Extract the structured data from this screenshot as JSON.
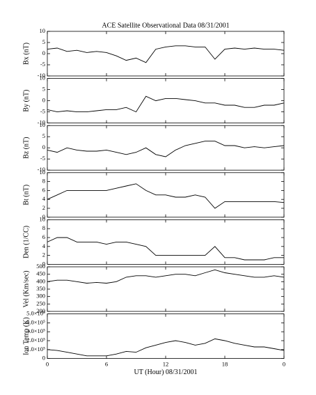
{
  "chart_data": [
    {
      "type": "line",
      "title": "ACE Satellite Observational Data  08/31/2001",
      "ylabel": "Bx (nT)",
      "x": [
        0,
        1,
        2,
        3,
        4,
        5,
        6,
        7,
        8,
        9,
        10,
        11,
        12,
        13,
        14,
        15,
        16,
        17,
        18,
        19,
        20,
        21,
        22,
        23,
        24
      ],
      "series": [
        {
          "color": "#000000",
          "values": [
            2,
            2.5,
            1,
            1.5,
            0.5,
            1,
            0.5,
            -1,
            -3,
            -2,
            -4,
            2,
            3,
            3.5,
            3.5,
            3,
            3,
            -2.5,
            2,
            2.5,
            2,
            2.5,
            2,
            2,
            1.5
          ]
        }
      ],
      "xlim": [
        0,
        24
      ],
      "xticks": [
        0,
        6,
        12,
        18,
        24
      ],
      "ylim": [
        -10,
        10
      ],
      "yticks": [
        -10,
        -5,
        0,
        5,
        10
      ]
    },
    {
      "type": "line",
      "ylabel": "By (nT)",
      "x": [
        0,
        1,
        2,
        3,
        4,
        5,
        6,
        7,
        8,
        9,
        10,
        11,
        12,
        13,
        14,
        15,
        16,
        17,
        18,
        19,
        20,
        21,
        22,
        23,
        24
      ],
      "series": [
        {
          "color": "#000000",
          "values": [
            -4,
            -5,
            -4.5,
            -5,
            -5,
            -4.5,
            -4,
            -4,
            -3,
            -5,
            2,
            0,
            1,
            1,
            0.5,
            0,
            -1,
            -1,
            -2,
            -2,
            -3,
            -3,
            -2,
            -2,
            -1
          ]
        }
      ],
      "xlim": [
        0,
        24
      ],
      "xticks": [
        0,
        6,
        12,
        18,
        24
      ],
      "ylim": [
        -10,
        10
      ],
      "yticks": [
        -10,
        -5,
        0,
        5,
        10
      ]
    },
    {
      "type": "line",
      "ylabel": "Bz (nT)",
      "x": [
        0,
        1,
        2,
        3,
        4,
        5,
        6,
        7,
        8,
        9,
        10,
        11,
        12,
        13,
        14,
        15,
        16,
        17,
        18,
        19,
        20,
        21,
        22,
        23,
        24
      ],
      "series": [
        {
          "color": "#000000",
          "values": [
            -1,
            -2,
            0,
            -1,
            -1.5,
            -1.5,
            -1,
            -2,
            -3,
            -2,
            0,
            -3,
            -4,
            -1,
            1,
            2,
            3,
            3,
            1,
            1,
            0,
            0.5,
            0,
            0.5,
            1
          ]
        }
      ],
      "xlim": [
        0,
        24
      ],
      "xticks": [
        0,
        6,
        12,
        18,
        24
      ],
      "ylim": [
        -10,
        10
      ],
      "yticks": [
        -10,
        -5,
        0,
        5,
        10
      ]
    },
    {
      "type": "line",
      "ylabel": "Bt (nT)",
      "x": [
        0,
        1,
        2,
        3,
        4,
        5,
        6,
        7,
        8,
        9,
        10,
        11,
        12,
        13,
        14,
        15,
        16,
        17,
        18,
        19,
        20,
        21,
        22,
        23,
        24
      ],
      "series": [
        {
          "color": "#000000",
          "values": [
            4,
            5,
            6,
            6,
            6,
            6,
            6,
            6.5,
            7,
            7.5,
            6,
            5,
            5,
            4.5,
            4.5,
            5,
            4.5,
            2,
            3.5,
            3.5,
            3.5,
            3.5,
            3.5,
            3.5,
            3.3
          ]
        }
      ],
      "xlim": [
        0,
        24
      ],
      "xticks": [
        0,
        6,
        12,
        18,
        24
      ],
      "ylim": [
        0,
        10
      ],
      "yticks": [
        0,
        2,
        4,
        6,
        8,
        10
      ]
    },
    {
      "type": "line",
      "ylabel": "Den (1/CC)",
      "x": [
        0,
        1,
        2,
        3,
        4,
        5,
        6,
        7,
        8,
        9,
        10,
        11,
        12,
        13,
        14,
        15,
        16,
        17,
        18,
        19,
        20,
        21,
        22,
        23,
        24
      ],
      "series": [
        {
          "color": "#000000",
          "values": [
            5,
            6,
            6,
            5,
            5,
            5,
            4.5,
            5,
            5,
            4.5,
            4,
            2,
            2,
            2,
            2,
            2,
            2,
            4,
            1.5,
            1.5,
            1,
            1,
            1,
            1.5,
            1.5
          ]
        }
      ],
      "xlim": [
        0,
        24
      ],
      "xticks": [
        0,
        6,
        12,
        18,
        24
      ],
      "ylim": [
        0,
        10
      ],
      "yticks": [
        0,
        2,
        4,
        6,
        8,
        10
      ]
    },
    {
      "type": "line",
      "ylabel": "Vel (Km/sec)",
      "x": [
        0,
        1,
        2,
        3,
        4,
        5,
        6,
        7,
        8,
        9,
        10,
        11,
        12,
        13,
        14,
        15,
        16,
        17,
        18,
        19,
        20,
        21,
        22,
        23,
        24
      ],
      "series": [
        {
          "color": "#000000",
          "values": [
            400,
            410,
            410,
            400,
            390,
            395,
            390,
            400,
            430,
            440,
            440,
            430,
            440,
            450,
            450,
            440,
            460,
            480,
            460,
            450,
            440,
            430,
            430,
            440,
            430
          ]
        }
      ],
      "xlim": [
        0,
        24
      ],
      "xticks": [
        0,
        6,
        12,
        18,
        24
      ],
      "ylim": [
        200,
        500
      ],
      "yticks": [
        200,
        250,
        300,
        350,
        400,
        450,
        500
      ]
    },
    {
      "type": "line",
      "ylabel": "Ion Temp (K)",
      "xlabel": "UT (Hour)  08/31/2001",
      "x": [
        0,
        1,
        2,
        3,
        4,
        5,
        6,
        7,
        8,
        9,
        10,
        11,
        12,
        13,
        14,
        15,
        16,
        17,
        18,
        19,
        20,
        21,
        22,
        23,
        24
      ],
      "series": [
        {
          "color": "#000000",
          "values": [
            100000,
            90000,
            70000,
            50000,
            30000,
            30000,
            30000,
            50000,
            80000,
            70000,
            120000,
            150000,
            180000,
            200000,
            180000,
            150000,
            170000,
            220000,
            200000,
            170000,
            150000,
            130000,
            130000,
            110000,
            90000
          ]
        }
      ],
      "xlim": [
        0,
        24
      ],
      "xticks": [
        0,
        6,
        12,
        18,
        {
          "value": 24,
          "label": "0"
        }
      ],
      "ylim": [
        0,
        500000
      ],
      "yticks": [
        0,
        {
          "value": 100000,
          "label": "1.0×10⁵"
        },
        {
          "value": 200000,
          "label": "2.0×10⁵"
        },
        {
          "value": 300000,
          "label": "3.0×10⁵"
        },
        {
          "value": 400000,
          "label": "4.0×10⁵"
        },
        {
          "value": 500000,
          "label": "5.0×10⁵"
        }
      ]
    }
  ]
}
